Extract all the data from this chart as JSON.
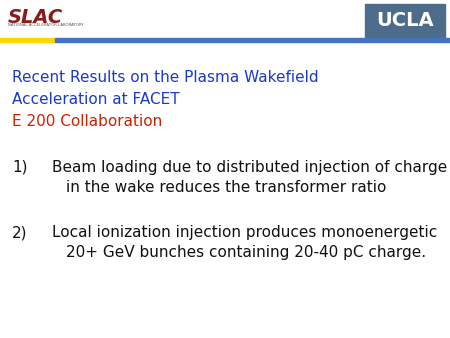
{
  "background_color": "#ffffff",
  "header_bar_color": "#4472c4",
  "header_bar_yellow": "#ffd700",
  "ucla_box_color": "#4d6b8a",
  "ucla_text": "UCLA",
  "ucla_text_color": "#ffffff",
  "title_line1": "Recent Results on the Plasma Wakefield",
  "title_line2": "Acceleration at FACET",
  "title_line3": "E 200 Collaboration",
  "title_color_blue": "#1a3acc",
  "title_color_red": "#cc2200",
  "item1_num": "1)",
  "item1_line1": "Beam loading due to distributed injection of charge",
  "item1_line2": "in the wake reduces the transformer ratio",
  "item2_num": "2)",
  "item2_line1": "Local ionization injection produces monoenergetic",
  "item2_line2": "20+ GeV bunches containing 20-40 pC charge.",
  "item_color": "#111111"
}
